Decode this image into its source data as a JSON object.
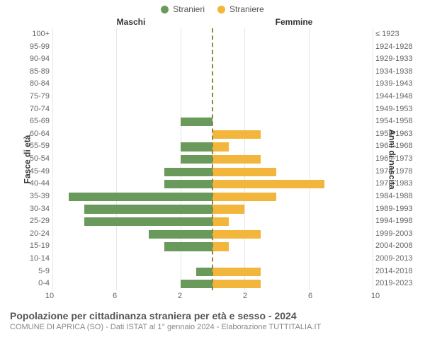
{
  "legend": {
    "male": {
      "label": "Stranieri",
      "color": "#6a9a5b"
    },
    "female": {
      "label": "Straniere",
      "color": "#f2b63c"
    }
  },
  "column_titles": {
    "left": "Maschi",
    "right": "Femmine"
  },
  "axis_titles": {
    "left": "Fasce di età",
    "right": "Anni di nascita"
  },
  "title": "Popolazione per cittadinanza straniera per età e sesso - 2024",
  "subtitle": "COMUNE DI APRICA (SO) - Dati ISTAT al 1° gennaio 2024 - Elaborazione TUTTITALIA.IT",
  "chart": {
    "type": "pyramid-bar",
    "xmax": 10,
    "x_ticks_left": [
      10,
      6,
      2
    ],
    "x_ticks_right": [
      2,
      6,
      10
    ],
    "grid_color": "#e6e6e6",
    "center_line_color": "#8a8a3a",
    "background_color": "#ffffff",
    "bar_height_pct": 70,
    "label_fontsize": 11,
    "label_color": "#666666",
    "title_fontsize": 14,
    "subtitle_fontsize": 11,
    "rows": [
      {
        "age": "100+",
        "birth": "≤ 1923",
        "m": 0,
        "f": 0
      },
      {
        "age": "95-99",
        "birth": "1924-1928",
        "m": 0,
        "f": 0
      },
      {
        "age": "90-94",
        "birth": "1929-1933",
        "m": 0,
        "f": 0
      },
      {
        "age": "85-89",
        "birth": "1934-1938",
        "m": 0,
        "f": 0
      },
      {
        "age": "80-84",
        "birth": "1939-1943",
        "m": 0,
        "f": 0
      },
      {
        "age": "75-79",
        "birth": "1944-1948",
        "m": 0,
        "f": 0
      },
      {
        "age": "70-74",
        "birth": "1949-1953",
        "m": 0,
        "f": 0
      },
      {
        "age": "65-69",
        "birth": "1954-1958",
        "m": 2,
        "f": 0
      },
      {
        "age": "60-64",
        "birth": "1959-1963",
        "m": 0,
        "f": 3
      },
      {
        "age": "55-59",
        "birth": "1964-1968",
        "m": 2,
        "f": 1
      },
      {
        "age": "50-54",
        "birth": "1969-1973",
        "m": 2,
        "f": 3
      },
      {
        "age": "45-49",
        "birth": "1974-1978",
        "m": 3,
        "f": 4
      },
      {
        "age": "40-44",
        "birth": "1979-1983",
        "m": 3,
        "f": 7
      },
      {
        "age": "35-39",
        "birth": "1984-1988",
        "m": 9,
        "f": 4
      },
      {
        "age": "30-34",
        "birth": "1989-1993",
        "m": 8,
        "f": 2
      },
      {
        "age": "25-29",
        "birth": "1994-1998",
        "m": 8,
        "f": 1
      },
      {
        "age": "20-24",
        "birth": "1999-2003",
        "m": 4,
        "f": 3
      },
      {
        "age": "15-19",
        "birth": "2004-2008",
        "m": 3,
        "f": 1
      },
      {
        "age": "10-14",
        "birth": "2009-2013",
        "m": 0,
        "f": 0
      },
      {
        "age": "5-9",
        "birth": "2014-2018",
        "m": 1,
        "f": 3
      },
      {
        "age": "0-4",
        "birth": "2019-2023",
        "m": 2,
        "f": 3
      }
    ]
  }
}
